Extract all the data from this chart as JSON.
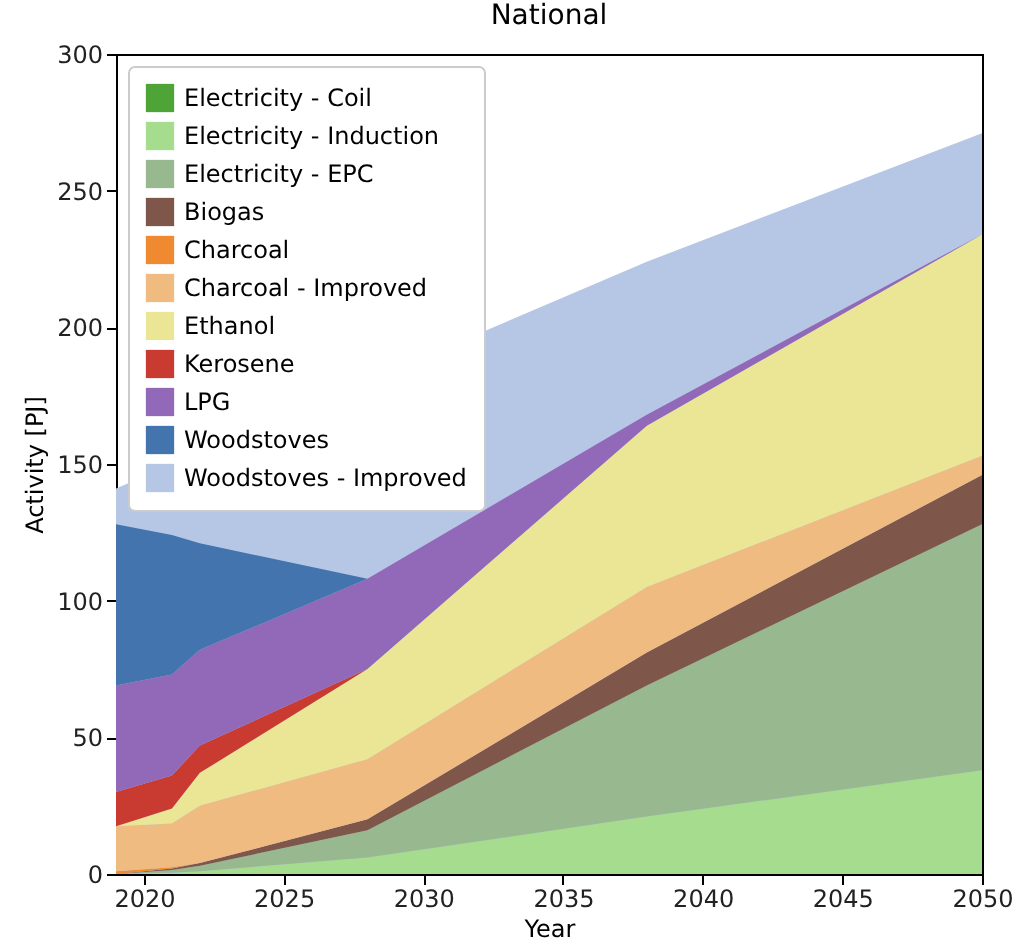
{
  "chart_data": {
    "type": "area",
    "title": "National",
    "xlabel": "Year",
    "ylabel": "Activity [PJ]",
    "stacked": true,
    "legend": "top left",
    "grid": false,
    "x": [
      2019,
      2021,
      2022,
      2028,
      2038,
      2050
    ],
    "xlim": [
      2019,
      2050
    ],
    "xticks": [
      2020,
      2025,
      2030,
      2035,
      2040,
      2045,
      2050
    ],
    "ylim": [
      0,
      300
    ],
    "yticks": [
      0,
      50,
      100,
      150,
      200,
      250,
      300
    ],
    "series": [
      {
        "name": "Electricity - Coil",
        "color": "#4ea437",
        "values": [
          null,
          null,
          null,
          null,
          null,
          null
        ]
      },
      {
        "name": "Electricity - Induction",
        "color": "#a6dc8e",
        "values": [
          0,
          0.5,
          1,
          6,
          21,
          38
        ]
      },
      {
        "name": "Electricity - EPC",
        "color": "#98b98f",
        "values": [
          0,
          1,
          2,
          10,
          48,
          90
        ]
      },
      {
        "name": "Biogas",
        "color": "#7f564a",
        "values": [
          0,
          0.5,
          1,
          4,
          12,
          18
        ]
      },
      {
        "name": "Charcoal",
        "color": "#ef8a30",
        "values": [
          1,
          0.5,
          0,
          null,
          null,
          null
        ]
      },
      {
        "name": "Charcoal - Improved",
        "color": "#efbb80",
        "values": [
          16.5,
          16,
          21,
          22,
          24,
          7
        ]
      },
      {
        "name": "Ethanol",
        "color": "#ebe596",
        "values": [
          0,
          5.5,
          12,
          33,
          59,
          81
        ]
      },
      {
        "name": "Kerosene",
        "color": "#c93a31",
        "values": [
          12.5,
          12,
          10,
          0,
          null,
          null
        ]
      },
      {
        "name": "LPG",
        "color": "#9268b8",
        "values": [
          39,
          37,
          35,
          33,
          4,
          0
        ]
      },
      {
        "name": "Woodstoves",
        "color": "#4374ae",
        "values": [
          59,
          51,
          39,
          0,
          null,
          null
        ]
      },
      {
        "name": "Woodstoves - Improved",
        "color": "#b6c6e5",
        "values": [
          13,
          null,
          null,
          null,
          56,
          37
        ]
      }
    ]
  }
}
